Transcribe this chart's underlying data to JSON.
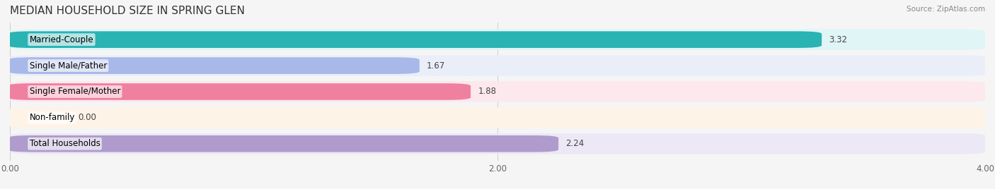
{
  "title": "MEDIAN HOUSEHOLD SIZE IN SPRING GLEN",
  "source": "Source: ZipAtlas.com",
  "categories": [
    "Married-Couple",
    "Single Male/Father",
    "Single Female/Mother",
    "Non-family",
    "Total Households"
  ],
  "values": [
    3.32,
    1.67,
    1.88,
    0.0,
    2.24
  ],
  "bar_colors": [
    "#2ab3b3",
    "#a8b8e8",
    "#f080a0",
    "#f5c896",
    "#b09ccc"
  ],
  "bar_bg_colors": [
    "#e0f5f5",
    "#eaeef8",
    "#fce8ed",
    "#fdf3e7",
    "#ece8f5"
  ],
  "xlim": [
    0,
    4.0
  ],
  "xticks": [
    0.0,
    2.0,
    4.0
  ],
  "xtick_labels": [
    "0.00",
    "2.00",
    "4.00"
  ],
  "title_fontsize": 11,
  "label_fontsize": 8.5,
  "value_fontsize": 8.5,
  "background_color": "#f5f5f5"
}
